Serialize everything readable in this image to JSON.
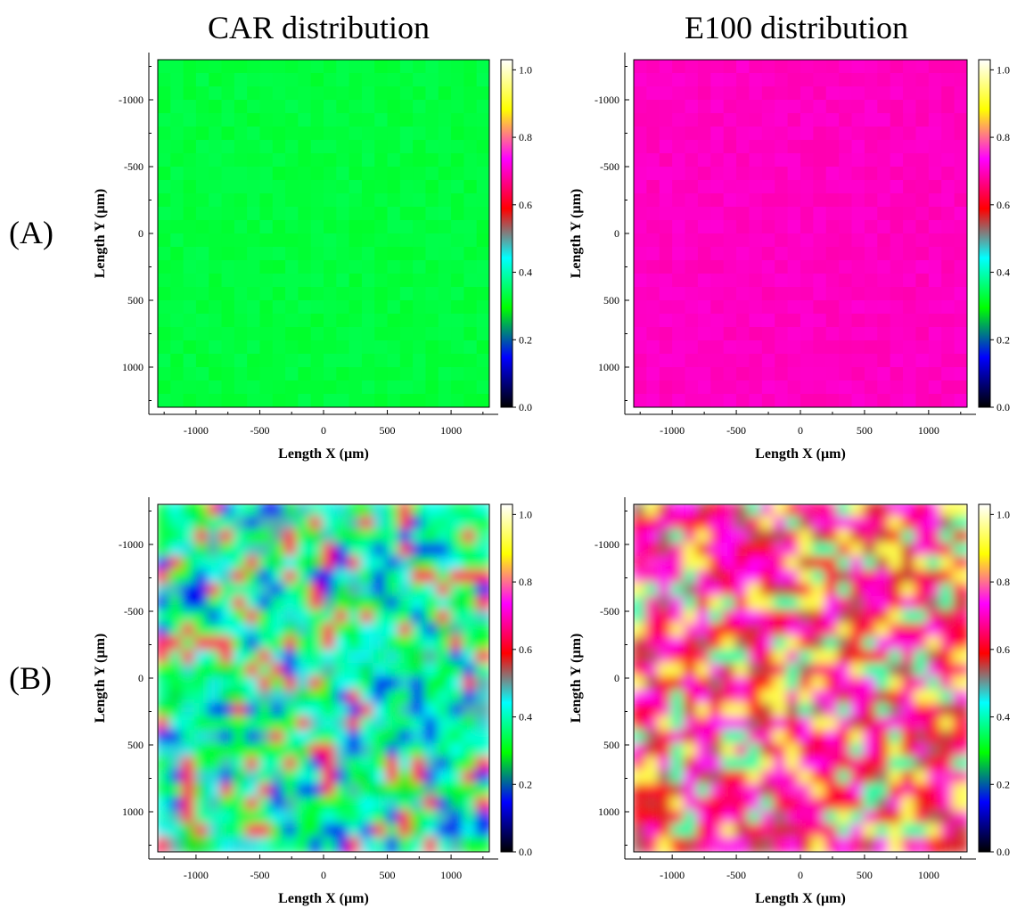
{
  "figure": {
    "column_titles": [
      "CAR distribution",
      "E100 distribution"
    ],
    "row_labels": [
      "(A)",
      "(B)"
    ]
  },
  "colors": {
    "colormap": [
      "#000000",
      "#0000ff",
      "#00ff00",
      "#00ffff",
      "#ff0000",
      "#ff00ff",
      "#ffff00",
      "#ffffff"
    ],
    "frame": "#000000"
  },
  "chart_data": [
    {
      "id": "A-CAR",
      "type": "heatmap",
      "title": "",
      "xlabel": "Length X (µm)",
      "ylabel": "Length Y (µm)",
      "xlim": [
        -1300,
        1300
      ],
      "ylim": [
        -1300,
        1300
      ],
      "y_inverted": true,
      "xticks": [
        -1000,
        -500,
        0,
        500,
        1000
      ],
      "yticks": [
        -1000,
        -500,
        0,
        500,
        1000
      ],
      "colorbar": {
        "ticks": [
          0.0,
          0.2,
          0.4,
          0.6,
          0.8,
          1.0
        ],
        "range": [
          0,
          1
        ]
      },
      "pattern": "uniform",
      "mean_value": 0.32
    },
    {
      "id": "A-E100",
      "type": "heatmap",
      "title": "",
      "xlabel": "Length X (µm)",
      "ylabel": "Length Y (µm)",
      "xlim": [
        -1300,
        1300
      ],
      "ylim": [
        -1300,
        1300
      ],
      "y_inverted": true,
      "xticks": [
        -1000,
        -500,
        0,
        500,
        1000
      ],
      "yticks": [
        -1000,
        -500,
        0,
        500,
        1000
      ],
      "colorbar": {
        "ticks": [
          0.0,
          0.2,
          0.4,
          0.6,
          0.8,
          1.0
        ],
        "range": [
          0,
          1
        ]
      },
      "pattern": "uniform",
      "mean_value": 0.68
    },
    {
      "id": "B-CAR",
      "type": "heatmap",
      "title": "",
      "xlabel": "Length X (µm)",
      "ylabel": "Length Y (µm)",
      "xlim": [
        -1300,
        1300
      ],
      "ylim": [
        -1300,
        1300
      ],
      "y_inverted": true,
      "xticks": [
        -1000,
        -500,
        0,
        500,
        1000
      ],
      "yticks": [
        -1000,
        -500,
        0,
        500,
        1000
      ],
      "colorbar": {
        "ticks": [
          0.0,
          0.2,
          0.4,
          0.6,
          0.8,
          1.0
        ],
        "range": [
          0,
          1
        ]
      },
      "pattern": "heterogeneous",
      "value_range": [
        0.15,
        0.62
      ]
    },
    {
      "id": "B-E100",
      "type": "heatmap",
      "title": "",
      "xlabel": "Length X (µm)",
      "ylabel": "Length Y (µm)",
      "xlim": [
        -1300,
        1300
      ],
      "ylim": [
        -1300,
        1300
      ],
      "y_inverted": true,
      "xticks": [
        -1000,
        -500,
        0,
        500,
        1000
      ],
      "yticks": [
        -1000,
        -500,
        0,
        500,
        1000
      ],
      "colorbar": {
        "ticks": [
          0.0,
          0.2,
          0.4,
          0.6,
          0.8,
          1.0
        ],
        "range": [
          0,
          1
        ]
      },
      "pattern": "heterogeneous",
      "value_range": [
        0.38,
        0.9
      ]
    }
  ]
}
